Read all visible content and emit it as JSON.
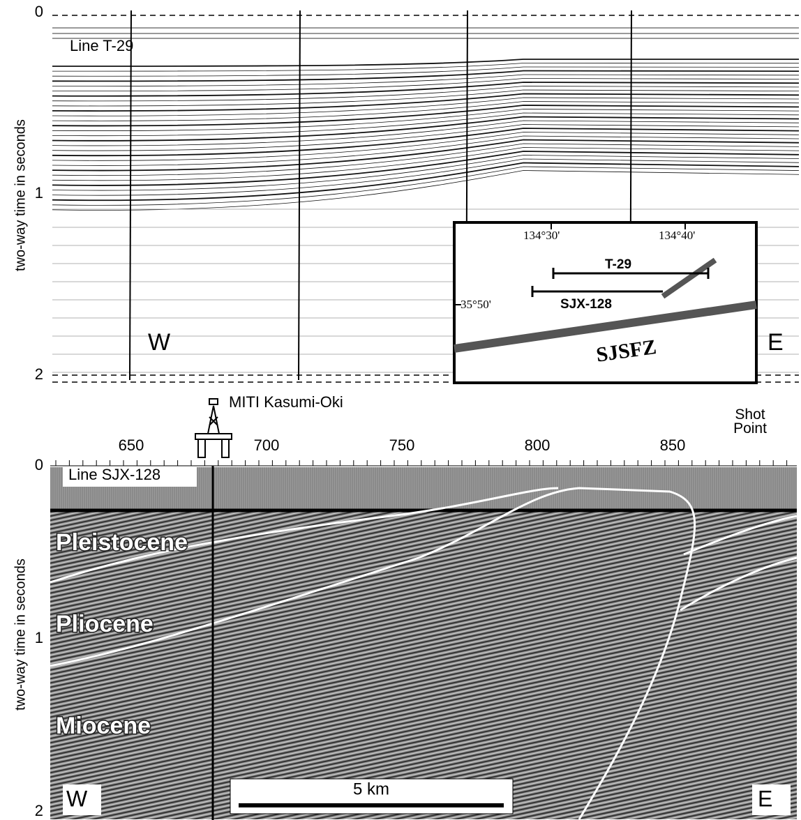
{
  "top_panel": {
    "line_label": "Line T-29",
    "y_axis_label": "two-way time in seconds",
    "y_ticks": [
      0,
      1,
      2
    ],
    "west": "W",
    "east": "E"
  },
  "inset_map": {
    "longitudes": [
      "134°30'",
      "134°40'"
    ],
    "latitude": "35°50'",
    "lines": [
      "T-29",
      "SJX-128"
    ],
    "fault": "SJSFZ"
  },
  "bottom_panel": {
    "well": "MITI Kasumi-Oki",
    "shot_points": [
      650,
      700,
      750,
      800,
      850
    ],
    "shot_point_label": "Shot Point",
    "line_label": "Line SJX-128",
    "y_axis_label": "two-way time in seconds",
    "y_ticks": [
      0,
      1,
      2
    ],
    "units": [
      "Pleistocene",
      "Pliocene",
      "Miocene"
    ],
    "west": "W",
    "east": "E",
    "scale_bar": "5 km"
  }
}
